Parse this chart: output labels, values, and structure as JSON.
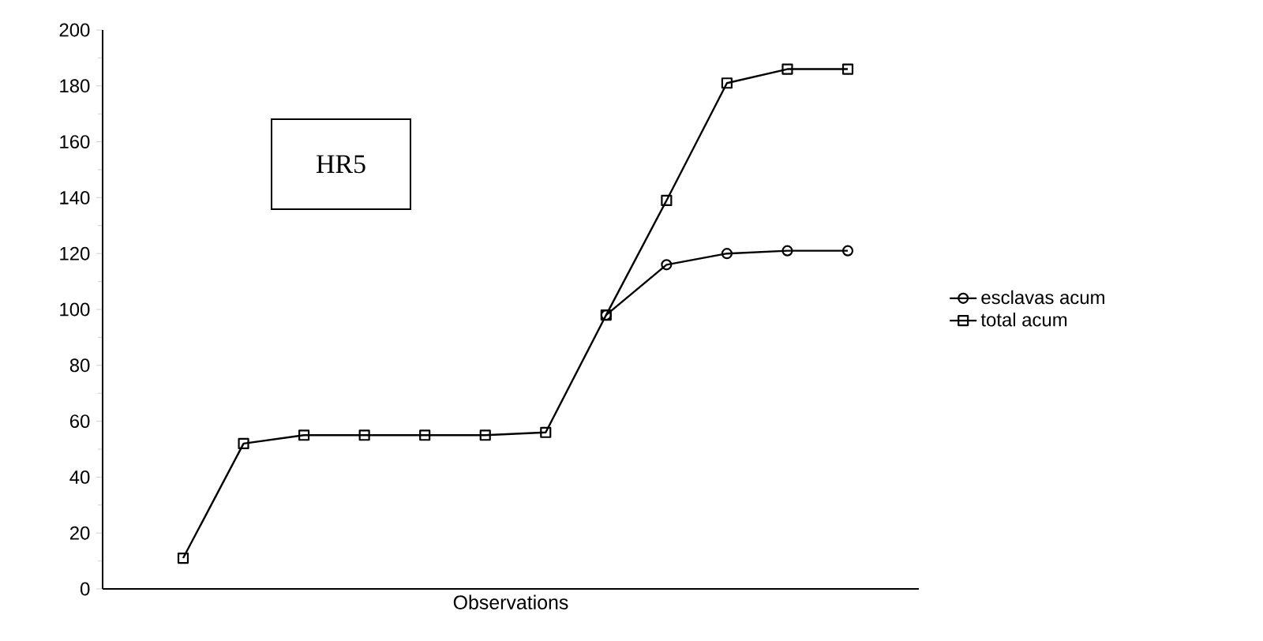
{
  "chart_data": {
    "type": "line",
    "xlabel": "Observations",
    "categories": [
      null,
      null,
      null,
      null,
      null,
      null,
      null,
      null,
      null,
      null,
      null,
      null
    ],
    "series": [
      {
        "name": "esclavas acum",
        "color": "#000000",
        "marker": "circle",
        "values": [
          null,
          null,
          null,
          null,
          null,
          null,
          null,
          98,
          116,
          120,
          121,
          121
        ]
      },
      {
        "name": "total acum",
        "color": "#000000",
        "marker": "square",
        "values": [
          11,
          52,
          55,
          55,
          55,
          55,
          56,
          98,
          139,
          181,
          186,
          186
        ]
      }
    ],
    "ylim": [
      0,
      200
    ],
    "yticks": [
      0,
      20,
      40,
      60,
      80,
      100,
      120,
      140,
      160,
      180,
      200
    ],
    "annotations": [
      "HR5"
    ],
    "legend": "right",
    "grid": false,
    "line_style": "solid"
  }
}
